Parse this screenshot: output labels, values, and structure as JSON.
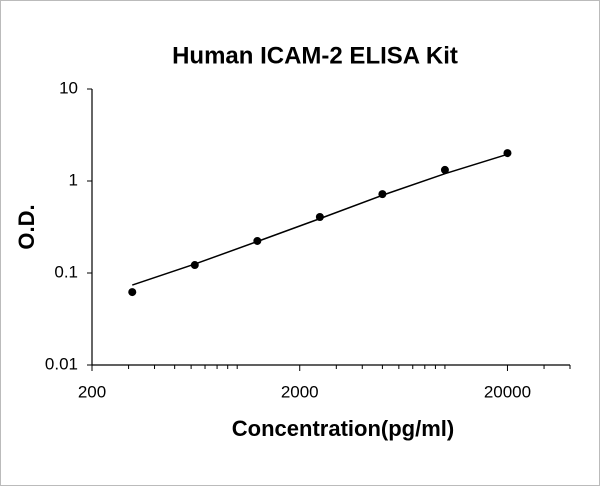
{
  "chart_data": {
    "type": "scatter",
    "title": "Human ICAM-2 ELISA Kit",
    "x_label": "Concentration(pg/ml)",
    "y_label": "O.D.",
    "x": [
      312.5,
      625,
      1250,
      2500,
      5000,
      10000,
      20000
    ],
    "series": [
      {
        "color": "#000000",
        "values": [
          0.062,
          0.122,
          0.223,
          0.406,
          0.72,
          1.32,
          2.01
        ],
        "style": "markers"
      },
      {
        "color": "#000000",
        "values": [
          0.074,
          0.125,
          0.22,
          0.39,
          0.7,
          1.2,
          1.95
        ],
        "style": "line"
      }
    ],
    "xlim": [
      200,
      40000
    ],
    "ylim": [
      0.01,
      10
    ],
    "xticks": [
      200,
      2000,
      20000
    ],
    "xminorticks": [
      300,
      400,
      500,
      600,
      700,
      800,
      900,
      1000,
      3000,
      4000,
      5000,
      6000,
      7000,
      8000,
      9000,
      10000,
      30000,
      40000
    ],
    "yticks": [
      0.01,
      0.1,
      1,
      10
    ],
    "xlog": true,
    "ylog": true,
    "grid": false
  }
}
